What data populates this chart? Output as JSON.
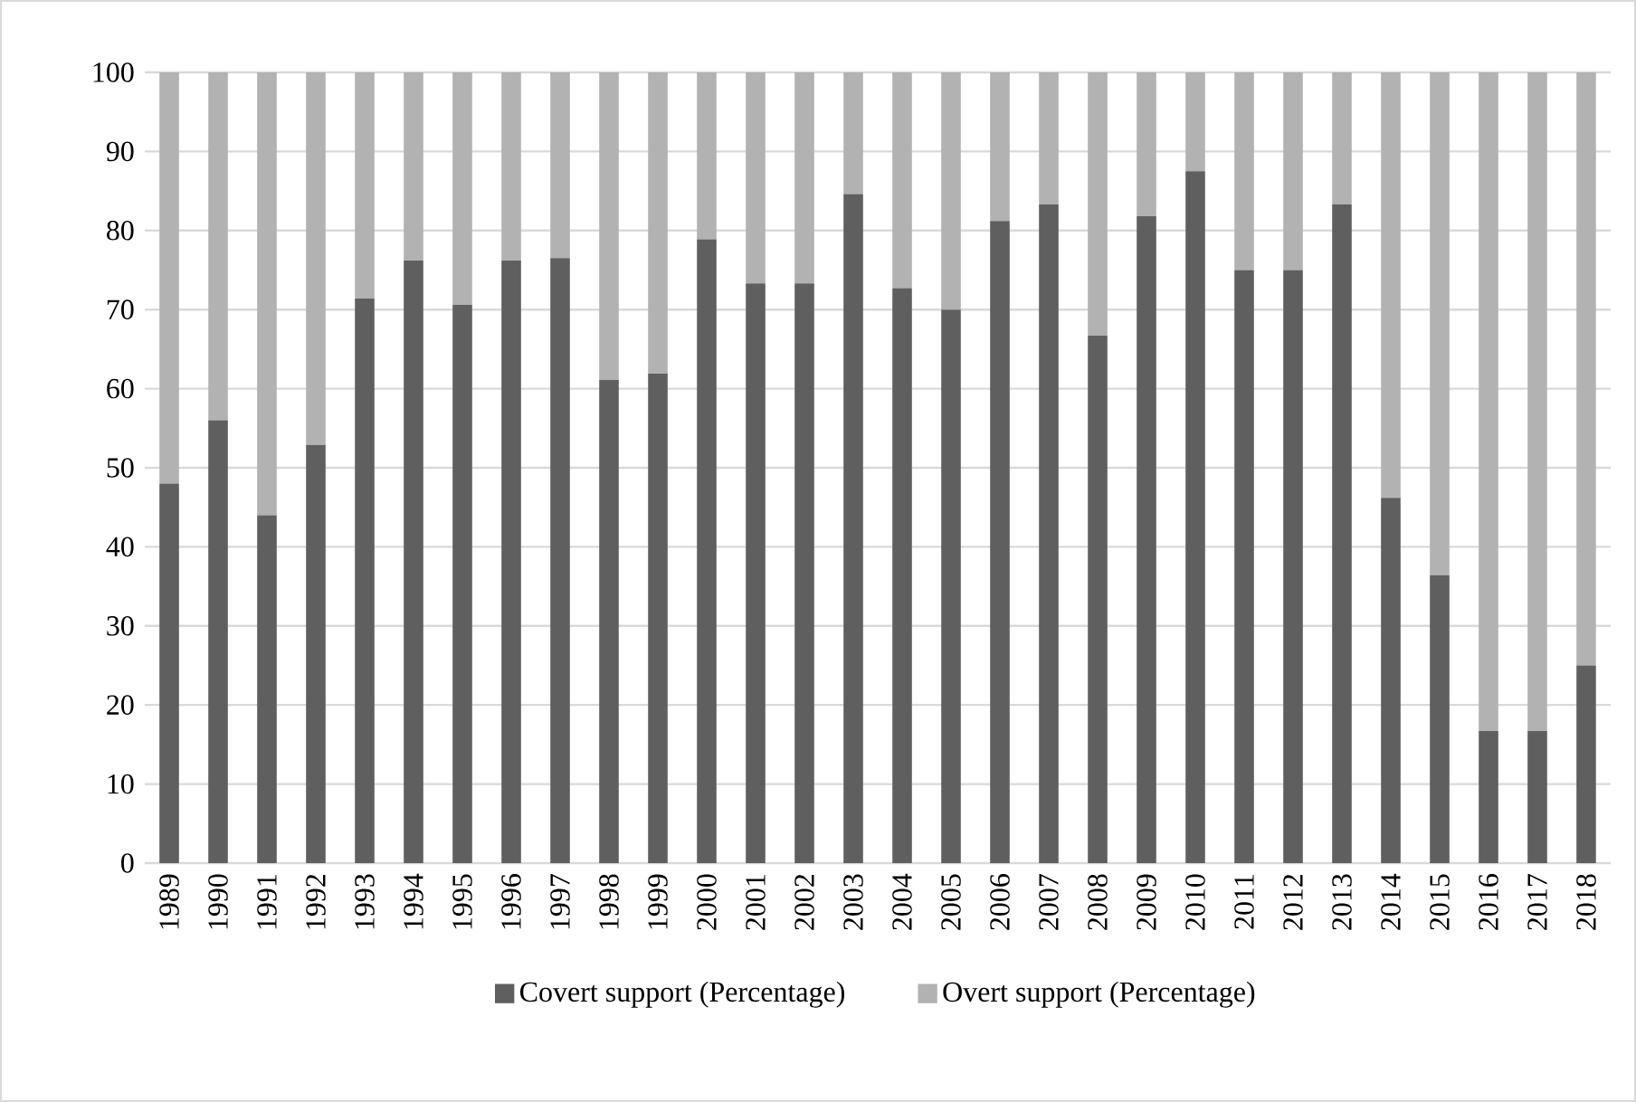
{
  "chart_data": {
    "type": "bar",
    "stacked": true,
    "categories": [
      "1989",
      "1990",
      "1991",
      "1992",
      "1993",
      "1994",
      "1995",
      "1996",
      "1997",
      "1998",
      "1999",
      "2000",
      "2001",
      "2002",
      "2003",
      "2004",
      "2005",
      "2006",
      "2007",
      "2008",
      "2009",
      "2010",
      "2011",
      "2012",
      "2013",
      "2014",
      "2015",
      "2016",
      "2017",
      "2018"
    ],
    "series": [
      {
        "name": "Covert support (Percentage)",
        "color": "#5f5f5f",
        "values": [
          48,
          56,
          44,
          52.9,
          71.4,
          76.2,
          70.6,
          76.2,
          76.5,
          61.1,
          61.9,
          78.9,
          73.3,
          73.3,
          84.6,
          72.7,
          70,
          81.2,
          83.3,
          66.7,
          81.8,
          87.5,
          75,
          75,
          83.3,
          46.2,
          36.4,
          16.7,
          16.7,
          25
        ]
      },
      {
        "name": "Overt support (Percentage)",
        "color": "#b2b2b2",
        "values": [
          52,
          44,
          56,
          47.1,
          28.6,
          23.8,
          29.4,
          23.8,
          23.5,
          38.9,
          38.1,
          21.1,
          26.7,
          26.7,
          15.4,
          27.3,
          30,
          18.8,
          16.7,
          33.3,
          18.2,
          12.5,
          25,
          25,
          16.7,
          53.8,
          63.6,
          83.3,
          83.3,
          75
        ]
      }
    ],
    "ylim": [
      0,
      100
    ],
    "yticks": [
      0,
      10,
      20,
      30,
      40,
      50,
      60,
      70,
      80,
      90,
      100
    ],
    "grid": "y",
    "legend": "bottom"
  }
}
